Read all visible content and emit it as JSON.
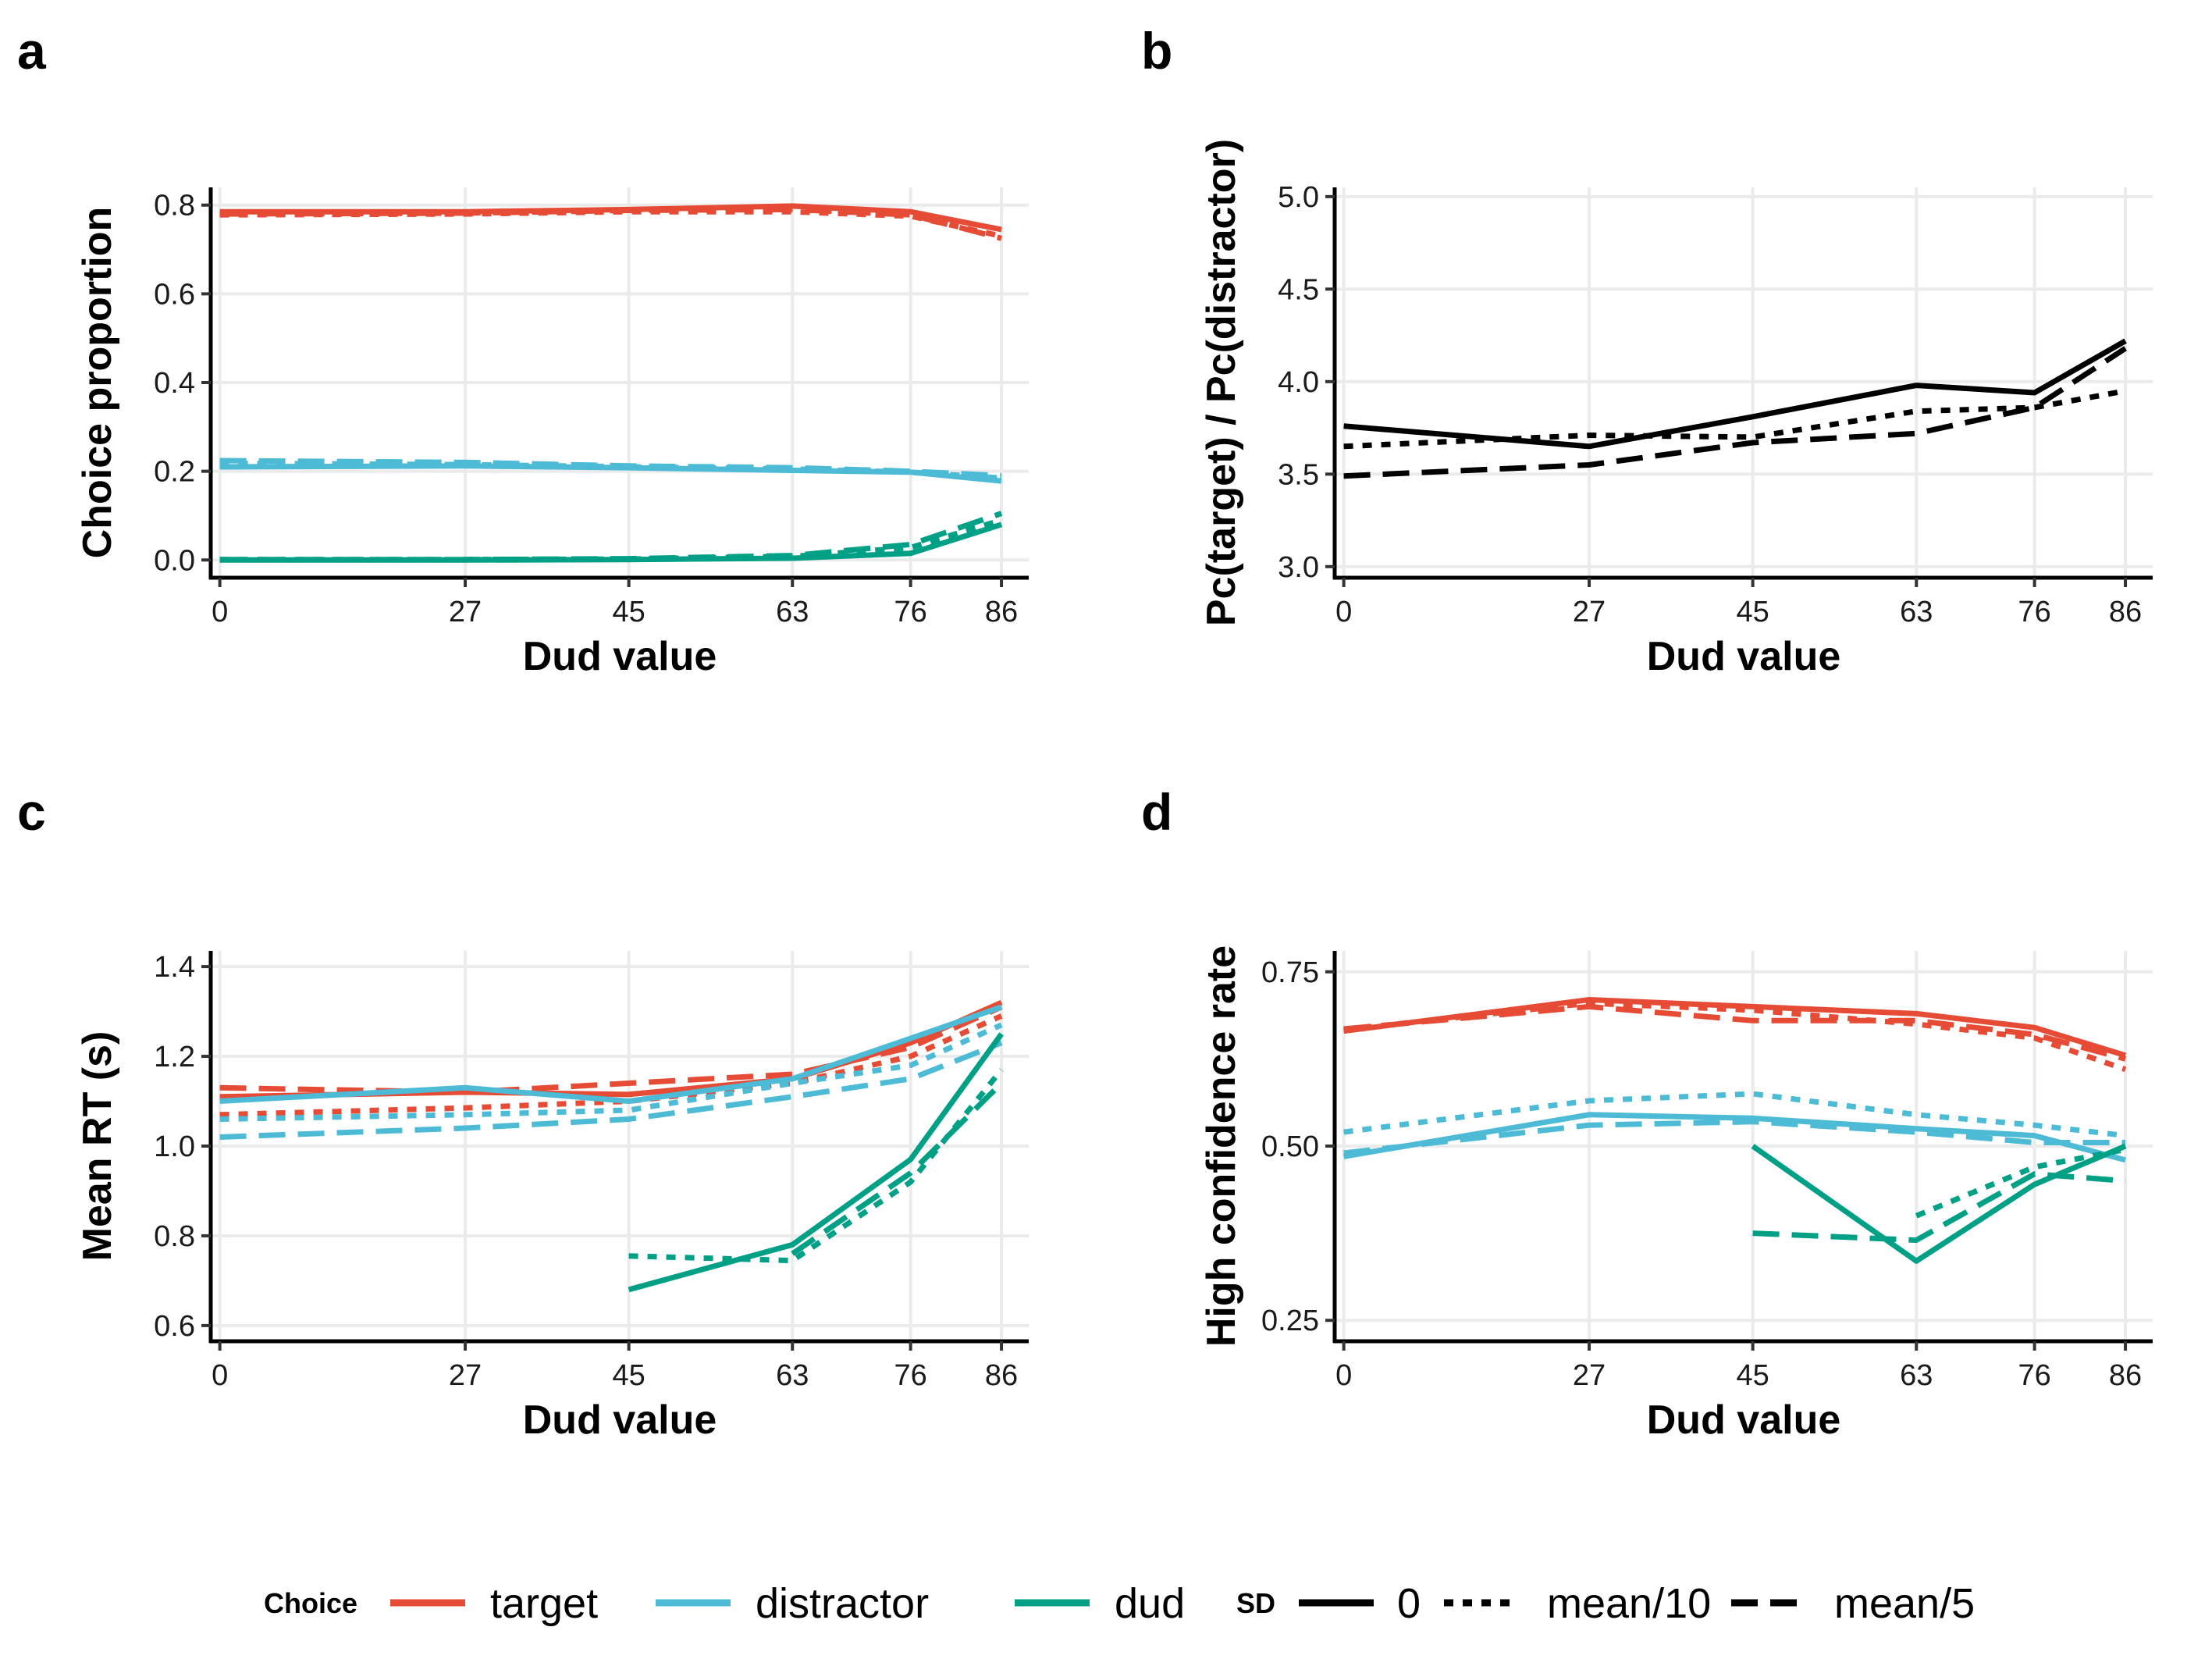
{
  "colors": {
    "target": "#E64B35",
    "distractor": "#4DBBD5",
    "dud": "#00A087",
    "black": "#000000",
    "grid": "#EBEBEB"
  },
  "dashes": {
    "0": "",
    "mean/10": "12,12",
    "mean/5": "34,16"
  },
  "chart_data": [
    {
      "id": "a",
      "letter": "a",
      "type": "line",
      "xlabel": "Dud value",
      "ylabel": "Choice proportion",
      "x_ticks": [
        0,
        27,
        45,
        63,
        76,
        86
      ],
      "xlim": [
        -1,
        89
      ],
      "ylim": [
        -0.04,
        0.84
      ],
      "y_ticks": [
        0.0,
        0.2,
        0.4,
        0.6,
        0.8
      ],
      "y_tick_labels": [
        "0.0",
        "0.2",
        "0.4",
        "0.6",
        "0.8"
      ],
      "grid": true,
      "series": [
        {
          "choice": "target",
          "sd": "0",
          "x": [
            0,
            27,
            45,
            63,
            76,
            86
          ],
          "y": [
            0.785,
            0.785,
            0.79,
            0.798,
            0.785,
            0.745
          ]
        },
        {
          "choice": "target",
          "sd": "mean/10",
          "x": [
            0,
            27,
            45,
            63,
            76,
            86
          ],
          "y": [
            0.778,
            0.78,
            0.785,
            0.785,
            0.775,
            0.73
          ]
        },
        {
          "choice": "target",
          "sd": "mean/5",
          "x": [
            0,
            27,
            45,
            63,
            76,
            86
          ],
          "y": [
            0.78,
            0.782,
            0.788,
            0.79,
            0.778,
            0.725
          ]
        },
        {
          "choice": "distractor",
          "sd": "0",
          "x": [
            0,
            27,
            45,
            63,
            76,
            86
          ],
          "y": [
            0.21,
            0.212,
            0.208,
            0.202,
            0.198,
            0.178
          ]
        },
        {
          "choice": "distractor",
          "sd": "mean/10",
          "x": [
            0,
            27,
            45,
            63,
            76,
            86
          ],
          "y": [
            0.218,
            0.215,
            0.21,
            0.205,
            0.198,
            0.185
          ]
        },
        {
          "choice": "distractor",
          "sd": "mean/5",
          "x": [
            0,
            27,
            45,
            63,
            76,
            86
          ],
          "y": [
            0.224,
            0.22,
            0.212,
            0.208,
            0.2,
            0.19
          ]
        },
        {
          "choice": "dud",
          "sd": "0",
          "x": [
            0,
            27,
            45,
            63,
            76,
            86
          ],
          "y": [
            0.0,
            0.0,
            0.001,
            0.004,
            0.015,
            0.08
          ]
        },
        {
          "choice": "dud",
          "sd": "mean/10",
          "x": [
            0,
            27,
            45,
            63,
            76,
            86
          ],
          "y": [
            0.001,
            0.001,
            0.002,
            0.008,
            0.028,
            0.09
          ]
        },
        {
          "choice": "dud",
          "sd": "mean/5",
          "x": [
            0,
            27,
            45,
            63,
            76,
            86
          ],
          "y": [
            0.001,
            0.001,
            0.003,
            0.01,
            0.035,
            0.105
          ]
        }
      ]
    },
    {
      "id": "b",
      "letter": "b",
      "type": "line",
      "xlabel": "Dud value",
      "ylabel": "Pc(target) / Pc(distractor)",
      "x_ticks": [
        0,
        27,
        45,
        63,
        76,
        86
      ],
      "xlim": [
        -1,
        89
      ],
      "ylim": [
        2.94,
        5.05
      ],
      "y_ticks": [
        3.0,
        3.5,
        4.0,
        4.5,
        5.0
      ],
      "y_tick_labels": [
        "3.0",
        "3.5",
        "4.0",
        "4.5",
        "5.0"
      ],
      "grid": true,
      "series": [
        {
          "choice": "black",
          "sd": "0",
          "x": [
            0,
            27,
            45,
            63,
            76,
            86
          ],
          "y": [
            3.76,
            3.65,
            3.81,
            3.98,
            3.94,
            4.22
          ]
        },
        {
          "choice": "black",
          "sd": "mean/10",
          "x": [
            0,
            27,
            45,
            63,
            76,
            86
          ],
          "y": [
            3.65,
            3.71,
            3.7,
            3.84,
            3.86,
            3.95
          ]
        },
        {
          "choice": "black",
          "sd": "mean/5",
          "x": [
            0,
            27,
            45,
            63,
            76,
            86
          ],
          "y": [
            3.49,
            3.55,
            3.67,
            3.72,
            3.86,
            4.18
          ]
        }
      ]
    },
    {
      "id": "c",
      "letter": "c",
      "type": "line",
      "xlabel": "Dud value",
      "ylabel": "Mean RT (s)",
      "x_ticks": [
        0,
        27,
        45,
        63,
        76,
        86
      ],
      "xlim": [
        -1,
        89
      ],
      "ylim": [
        0.565,
        1.435
      ],
      "y_ticks": [
        0.6,
        0.8,
        1.0,
        1.2,
        1.4
      ],
      "y_tick_labels": [
        "0.6",
        "0.8",
        "1.0",
        "1.2",
        "1.4"
      ],
      "grid": true,
      "series": [
        {
          "choice": "target",
          "sd": "0",
          "x": [
            0,
            27,
            45,
            63,
            76,
            86
          ],
          "y": [
            1.11,
            1.12,
            1.115,
            1.15,
            1.23,
            1.32
          ]
        },
        {
          "choice": "target",
          "sd": "mean/10",
          "x": [
            0,
            27,
            45,
            63,
            76,
            86
          ],
          "y": [
            1.07,
            1.085,
            1.1,
            1.14,
            1.2,
            1.29
          ]
        },
        {
          "choice": "target",
          "sd": "mean/5",
          "x": [
            0,
            27,
            45,
            63,
            76,
            86
          ],
          "y": [
            1.13,
            1.12,
            1.14,
            1.16,
            1.22,
            1.31
          ]
        },
        {
          "choice": "distractor",
          "sd": "0",
          "x": [
            0,
            27,
            45,
            63,
            76,
            86
          ],
          "y": [
            1.1,
            1.13,
            1.1,
            1.15,
            1.24,
            1.31
          ]
        },
        {
          "choice": "distractor",
          "sd": "mean/10",
          "x": [
            0,
            27,
            45,
            63,
            76,
            86
          ],
          "y": [
            1.06,
            1.07,
            1.08,
            1.14,
            1.18,
            1.27
          ]
        },
        {
          "choice": "distractor",
          "sd": "mean/5",
          "x": [
            0,
            27,
            45,
            63,
            76,
            86
          ],
          "y": [
            1.02,
            1.04,
            1.06,
            1.11,
            1.15,
            1.23
          ]
        },
        {
          "choice": "dud",
          "sd": "0",
          "x": [
            45,
            63,
            76,
            86
          ],
          "y": [
            0.68,
            0.78,
            0.97,
            1.25
          ]
        },
        {
          "choice": "dud",
          "sd": "mean/10",
          "x": [
            45,
            63,
            76,
            86
          ],
          "y": [
            0.755,
            0.745,
            0.92,
            1.17
          ]
        },
        {
          "choice": "dud",
          "sd": "mean/5",
          "x": [
            63,
            76,
            86
          ],
          "y": [
            0.76,
            0.94,
            1.14
          ]
        }
      ]
    },
    {
      "id": "d",
      "letter": "d",
      "type": "line",
      "xlabel": "Dud value",
      "ylabel": "High confidence rate",
      "x_ticks": [
        0,
        27,
        45,
        63,
        76,
        86
      ],
      "xlim": [
        -1,
        89
      ],
      "ylim": [
        0.22,
        0.78
      ],
      "y_ticks": [
        0.25,
        0.5,
        0.75
      ],
      "y_tick_labels": [
        "0.25",
        "0.50",
        "0.75"
      ],
      "grid": true,
      "series": [
        {
          "choice": "target",
          "sd": "0",
          "x": [
            0,
            27,
            45,
            63,
            76,
            86
          ],
          "y": [
            0.665,
            0.71,
            0.7,
            0.69,
            0.67,
            0.63
          ]
        },
        {
          "choice": "target",
          "sd": "mean/10",
          "x": [
            0,
            27,
            45,
            63,
            76,
            86
          ],
          "y": [
            0.667,
            0.705,
            0.695,
            0.675,
            0.655,
            0.61
          ]
        },
        {
          "choice": "target",
          "sd": "mean/5",
          "x": [
            0,
            27,
            45,
            63,
            76,
            86
          ],
          "y": [
            0.668,
            0.7,
            0.68,
            0.68,
            0.66,
            0.625
          ]
        },
        {
          "choice": "distractor",
          "sd": "0",
          "x": [
            0,
            27,
            45,
            63,
            76,
            86
          ],
          "y": [
            0.485,
            0.545,
            0.54,
            0.525,
            0.515,
            0.48
          ]
        },
        {
          "choice": "distractor",
          "sd": "mean/10",
          "x": [
            0,
            27,
            45,
            63,
            76,
            86
          ],
          "y": [
            0.52,
            0.565,
            0.575,
            0.545,
            0.53,
            0.515
          ]
        },
        {
          "choice": "distractor",
          "sd": "mean/5",
          "x": [
            0,
            27,
            45,
            63,
            76,
            86
          ],
          "y": [
            0.49,
            0.53,
            0.535,
            0.52,
            0.505,
            0.505
          ]
        },
        {
          "choice": "dud",
          "sd": "0",
          "x": [
            45,
            63,
            76,
            86
          ],
          "y": [
            0.5,
            0.335,
            0.445,
            0.5
          ]
        },
        {
          "choice": "dud",
          "sd": "mean/10",
          "x": [
            63,
            76,
            86
          ],
          "y": [
            0.4,
            0.47,
            0.495
          ]
        },
        {
          "choice": "dud",
          "sd": "mean/5",
          "x": [
            45,
            63,
            76,
            86
          ],
          "y": [
            0.375,
            0.365,
            0.46,
            0.45
          ]
        }
      ]
    }
  ],
  "legend": {
    "choice_title": "Choice",
    "choice_items": [
      {
        "key": "target",
        "label": "target"
      },
      {
        "key": "distractor",
        "label": "distractor"
      },
      {
        "key": "dud",
        "label": "dud"
      }
    ],
    "sd_title": "SD",
    "sd_items": [
      {
        "key": "0",
        "label": "0"
      },
      {
        "key": "mean/10",
        "label": "mean/10"
      },
      {
        "key": "mean/5",
        "label": "mean/5"
      }
    ]
  }
}
